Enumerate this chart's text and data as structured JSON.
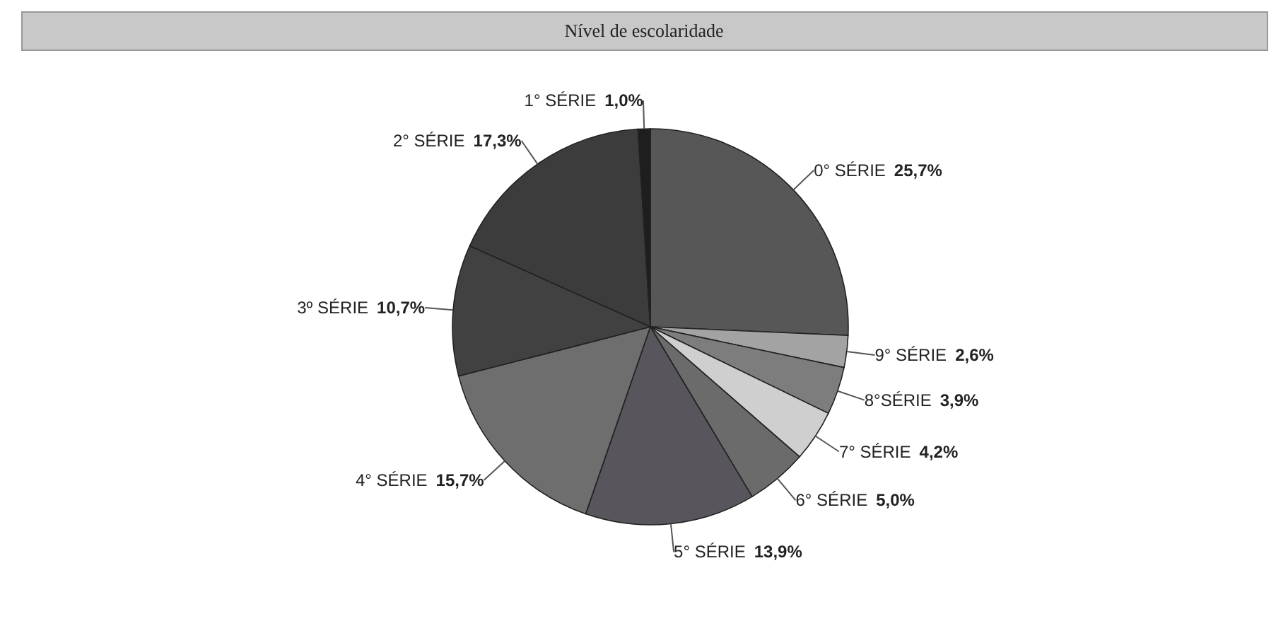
{
  "chart_data": {
    "type": "pie",
    "title": "Nível de escolaridade",
    "categories": [
      "0° SÉRIE",
      "9° SÉRIE",
      "8°SÉRIE",
      "7° SÉRIE",
      "6° SÉRIE",
      "5° SÉRIE",
      "4° SÉRIE",
      "3º SÉRIE",
      "2° SÉRIE",
      "1° SÉRIE"
    ],
    "values": [
      25.7,
      2.6,
      3.9,
      4.2,
      5.0,
      13.9,
      15.7,
      10.7,
      17.3,
      1.0
    ],
    "value_labels": [
      "25,7%",
      "2,6%",
      "3,9%",
      "4,2%",
      "5,0%",
      "13,9%",
      "15,7%",
      "10,7%",
      "17,3%",
      "1,0%"
    ],
    "colors": [
      "#575757",
      "#a3a3a3",
      "#7d7d7d",
      "#cfcfcf",
      "#6b6b6b",
      "#58555c",
      "#6e6e6e",
      "#414141",
      "#3c3c3c",
      "#1e1e1e"
    ],
    "legend": false
  }
}
